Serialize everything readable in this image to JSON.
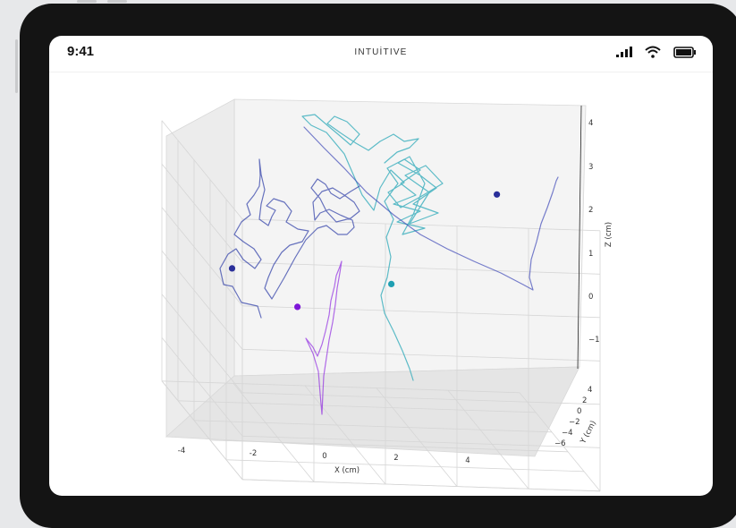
{
  "status_bar": {
    "time": "9:41",
    "brand": "INTUİTIVE"
  },
  "icons": [
    "signal-icon",
    "wifi-icon",
    "battery-icon"
  ],
  "colors": {
    "screen_bg": "#ffffff",
    "device_frame": "#141414"
  },
  "chart_data": {
    "type": "line3d",
    "title": "",
    "xlabel": "X (cm)",
    "ylabel": "Y (cm)",
    "zlabel": "Z (cm)",
    "xlim": [
      -4,
      6
    ],
    "ylim": [
      -6,
      4
    ],
    "zlim": [
      -2,
      4
    ],
    "xticks": [
      "-4",
      "-2",
      "0",
      "2",
      "4"
    ],
    "yticks": [
      "4",
      "2",
      "0",
      "−2",
      "−4",
      "−6"
    ],
    "zticks": [
      "−1",
      "0",
      "1",
      "2",
      "3",
      "4"
    ],
    "grid": true,
    "series": [
      {
        "color": "#2f3fa8",
        "end_marker": [
          -2.6,
          -3.5,
          1.2
        ]
      },
      {
        "color": "#3f48b8",
        "end_marker": [
          4.6,
          -2.6,
          3.3
        ]
      },
      {
        "color": "#2aa8b8",
        "end_marker": [
          1.2,
          -0.6,
          1.6
        ]
      },
      {
        "color": "#8a1fe0",
        "end_marker": [
          -0.3,
          -5.6,
          -0.1
        ]
      }
    ]
  }
}
